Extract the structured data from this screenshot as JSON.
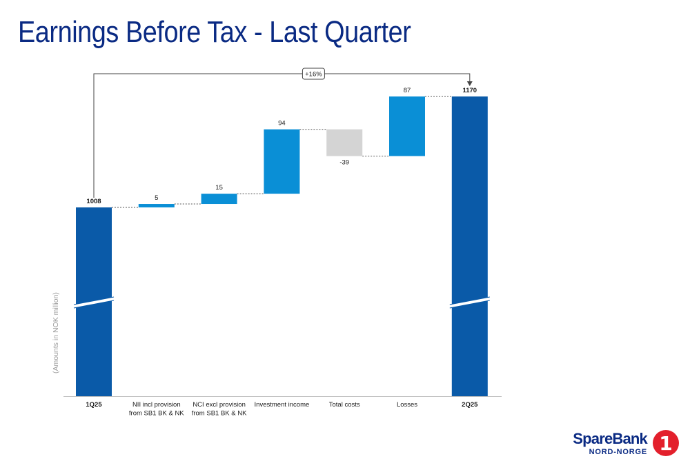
{
  "header": {
    "title": "Earnings Before Tax - Last Quarter"
  },
  "chart_data": {
    "type": "waterfall",
    "ylabel": "(Amounts in NOK million)",
    "categories": [
      [
        "1Q25"
      ],
      [
        "NII incl provision",
        "from SB1 BK & NK"
      ],
      [
        "NCI excl provision",
        "from SB1 BK & NK"
      ],
      [
        "Investment income"
      ],
      [
        "Total costs"
      ],
      [
        "Losses"
      ],
      [
        "2Q25"
      ]
    ],
    "values": [
      1008,
      5,
      15,
      94,
      -39,
      87,
      1170
    ],
    "value_labels": [
      "1008",
      "5",
      "15",
      "94",
      "-39",
      "87",
      "1170"
    ],
    "kinds": [
      "total",
      "delta",
      "delta",
      "delta",
      "delta",
      "delta",
      "total"
    ],
    "axis_break": true,
    "comparison_label": "+16%",
    "colors": {
      "total": "#0a5aa8",
      "increase": "#0a8fd6",
      "decrease": "#d4d4d4",
      "label": "#1a1a1a",
      "axis": "#bfbfbf",
      "ylabel": "#9a9a9a"
    }
  },
  "logo": {
    "name": "SpareBank",
    "digit": "1",
    "sub": "NORD-NORGE"
  }
}
